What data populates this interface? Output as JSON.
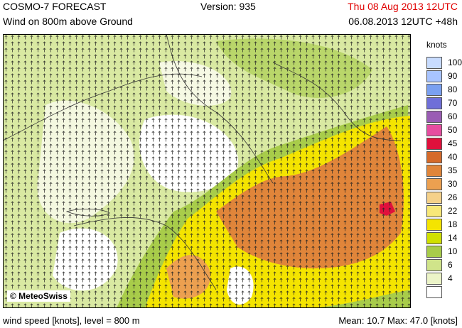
{
  "header": {
    "title": "COSMO-7 FORECAST",
    "subtitle": "Wind on 800m above Ground",
    "version": "Version: 935",
    "valid_time": "Thu 08 Aug 2013 12UTC",
    "run_time": "06.08.2013 12UTC +48h"
  },
  "map": {
    "copyright": "© MeteoSwiss"
  },
  "legend": {
    "units": "knots",
    "levels": [
      {
        "label": "100",
        "color": "#c8dcff"
      },
      {
        "label": "90",
        "color": "#a8c4ff"
      },
      {
        "label": "80",
        "color": "#7aa0f0"
      },
      {
        "label": "70",
        "color": "#6f6fd8"
      },
      {
        "label": "60",
        "color": "#9a5cb4"
      },
      {
        "label": "50",
        "color": "#e64da0"
      },
      {
        "label": "45",
        "color": "#e0103c"
      },
      {
        "label": "40",
        "color": "#d56a2a"
      },
      {
        "label": "35",
        "color": "#e0853a"
      },
      {
        "label": "30",
        "color": "#eca050"
      },
      {
        "label": "26",
        "color": "#f5d18a"
      },
      {
        "label": "22",
        "color": "#f8e878"
      },
      {
        "label": "18",
        "color": "#f4e400"
      },
      {
        "label": "14",
        "color": "#d0e000"
      },
      {
        "label": "10",
        "color": "#a8cc4a"
      },
      {
        "label": "6",
        "color": "#d0e48a"
      },
      {
        "label": "4",
        "color": "#ecf4c8"
      },
      {
        "label": "",
        "color": "#ffffff"
      }
    ]
  },
  "footer": {
    "left": "wind speed [knots], level = 800 m",
    "right": "Mean:   10.7 Max:   47.0 [knots]"
  }
}
